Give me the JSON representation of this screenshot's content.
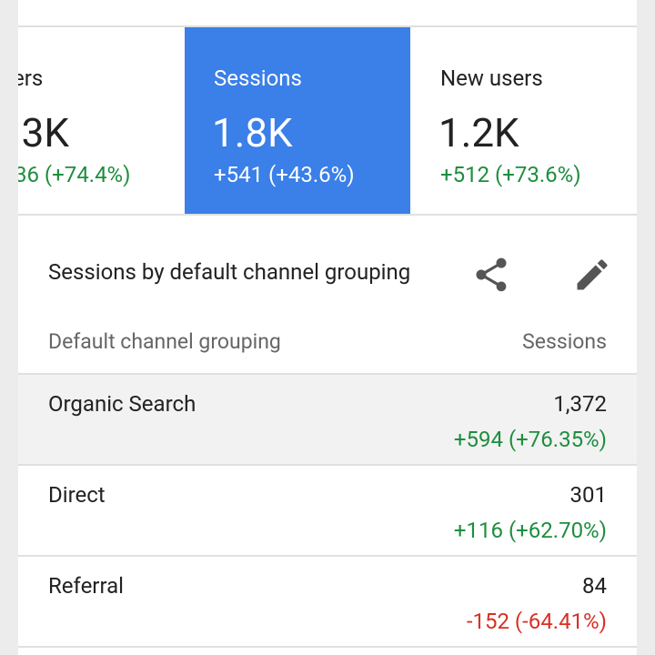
{
  "metrics": [
    {
      "label": "ers",
      "value": ".3K",
      "change": "36 (+74.4%)"
    },
    {
      "label": "Sessions",
      "value": "1.8K",
      "change": "+541 (+43.6%)"
    },
    {
      "label": "New users",
      "value": "1.2K",
      "change": "+512 (+73.6%)"
    }
  ],
  "card": {
    "title": "Sessions by default channel grouping",
    "columns": [
      "Default channel grouping",
      "Sessions"
    ],
    "rows": [
      {
        "channel": "Organic Search",
        "sessions": "1,372",
        "change": "+594 (+76.35%)"
      },
      {
        "channel": "Direct",
        "sessions": "301",
        "change": "+116 (+62.70%)"
      },
      {
        "channel": "Referral",
        "sessions": "84",
        "change": "-152 (-64.41%)"
      }
    ]
  }
}
